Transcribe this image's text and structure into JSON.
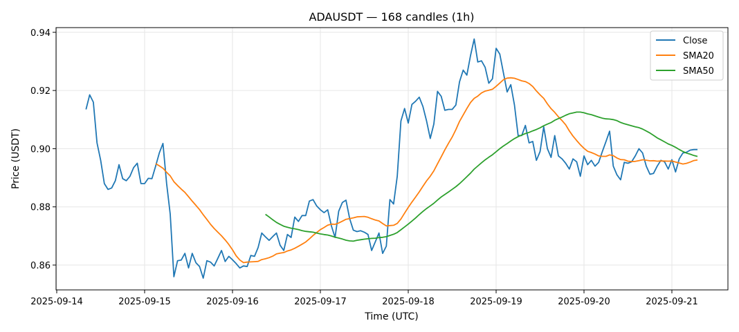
{
  "chart_data": {
    "type": "line",
    "title": "ADAUSDT — 168 candles (1h)",
    "xlabel": "Time (UTC)",
    "ylabel": "Price (USDT)",
    "start": "2025-09-14T08:00:00Z",
    "interval_hours": 1,
    "ylim": [
      0.852,
      0.942
    ],
    "xlim_hours_from_first_tick": [
      -0.2,
      182.7
    ],
    "x_ticks": [
      "2025-09-14",
      "2025-09-15",
      "2025-09-16",
      "2025-09-17",
      "2025-09-18",
      "2025-09-19",
      "2025-09-20",
      "2025-09-21"
    ],
    "y_ticks": [
      "0.86",
      "0.88",
      "0.90",
      "0.92",
      "0.94"
    ],
    "grid": true,
    "legend_position": "top-right",
    "series": [
      {
        "name": "Close",
        "color": "#1f77b4",
        "values": [
          0.9135,
          0.9185,
          0.916,
          0.902,
          0.896,
          0.888,
          0.886,
          0.8865,
          0.889,
          0.8945,
          0.8897,
          0.889,
          0.8905,
          0.8935,
          0.895,
          0.888,
          0.888,
          0.8898,
          0.8897,
          0.894,
          0.8985,
          0.9018,
          0.888,
          0.8775,
          0.856,
          0.8615,
          0.8617,
          0.864,
          0.859,
          0.864,
          0.8608,
          0.8595,
          0.8555,
          0.8615,
          0.861,
          0.8597,
          0.8623,
          0.865,
          0.8612,
          0.863,
          0.8618,
          0.8605,
          0.859,
          0.8597,
          0.8595,
          0.8633,
          0.863,
          0.866,
          0.871,
          0.8697,
          0.8685,
          0.8698,
          0.871,
          0.8668,
          0.865,
          0.8705,
          0.8695,
          0.8765,
          0.875,
          0.877,
          0.877,
          0.882,
          0.8825,
          0.8803,
          0.879,
          0.878,
          0.879,
          0.8735,
          0.8695,
          0.8785,
          0.8815,
          0.8823,
          0.876,
          0.872,
          0.8715,
          0.8718,
          0.8713,
          0.8705,
          0.865,
          0.868,
          0.871,
          0.864,
          0.8665,
          0.8825,
          0.881,
          0.8905,
          0.9095,
          0.9138,
          0.9088,
          0.9152,
          0.9163,
          0.9177,
          0.9145,
          0.9095,
          0.9035,
          0.9085,
          0.9197,
          0.918,
          0.9132,
          0.9135,
          0.9135,
          0.915,
          0.923,
          0.927,
          0.9253,
          0.932,
          0.9377,
          0.9298,
          0.9302,
          0.928,
          0.9225,
          0.924,
          0.9345,
          0.9325,
          0.926,
          0.9195,
          0.922,
          0.915,
          0.9045,
          0.9045,
          0.908,
          0.902,
          0.9025,
          0.896,
          0.899,
          0.9075,
          0.9,
          0.897,
          0.9045,
          0.8975,
          0.8965,
          0.895,
          0.893,
          0.8965,
          0.8955,
          0.8905,
          0.8975,
          0.8945,
          0.896,
          0.894,
          0.8953,
          0.899,
          0.9025,
          0.906,
          0.894,
          0.891,
          0.8893,
          0.8953,
          0.895,
          0.8955,
          0.8975,
          0.9,
          0.8985,
          0.894,
          0.8912,
          0.8915,
          0.894,
          0.896,
          0.8955,
          0.893,
          0.8962,
          0.892,
          0.8965,
          0.8985,
          0.8988,
          0.8995,
          0.8997,
          0.8997
        ]
      },
      {
        "name": "SMA20",
        "color": "#ff7f0e",
        "window": 20
      },
      {
        "name": "SMA50",
        "color": "#2ca02c",
        "window": 50
      }
    ]
  }
}
